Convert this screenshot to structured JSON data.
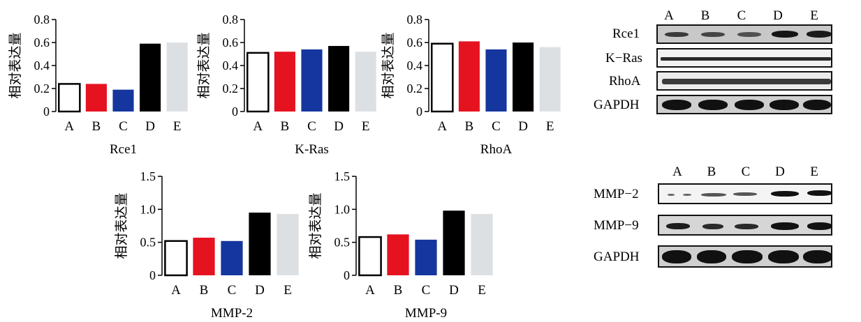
{
  "ylabel": "相对表达量",
  "colors": {
    "A": "#ffffff",
    "B": "#e5121f",
    "C": "#14369e",
    "D": "#000000",
    "E": "#dde0e3"
  },
  "chart_data": [
    {
      "type": "bar",
      "title": "Rce1",
      "categories": [
        "A",
        "B",
        "C",
        "D",
        "E"
      ],
      "values": [
        0.24,
        0.24,
        0.19,
        0.59,
        0.6
      ],
      "ylim": [
        0,
        0.8
      ],
      "yticks": [
        "0",
        "0.2",
        "0.4",
        "0.6",
        "0.8"
      ],
      "ylabel": "相对表达量",
      "xlabel": "Rce1"
    },
    {
      "type": "bar",
      "title": "K-Ras",
      "categories": [
        "A",
        "B",
        "C",
        "D",
        "E"
      ],
      "values": [
        0.51,
        0.52,
        0.54,
        0.57,
        0.52
      ],
      "ylim": [
        0,
        0.8
      ],
      "yticks": [
        "0",
        "0.2",
        "0.4",
        "0.6",
        "0.8"
      ],
      "ylabel": "相对表达量",
      "xlabel": "K-Ras"
    },
    {
      "type": "bar",
      "title": "RhoA",
      "categories": [
        "A",
        "B",
        "C",
        "D",
        "E"
      ],
      "values": [
        0.59,
        0.61,
        0.54,
        0.6,
        0.56
      ],
      "ylim": [
        0,
        0.8
      ],
      "yticks": [
        "0",
        "0.2",
        "0.4",
        "0.6",
        "0.8"
      ],
      "ylabel": "相对表达量",
      "xlabel": "RhoA"
    },
    {
      "type": "bar",
      "title": "MMP-2",
      "categories": [
        "A",
        "B",
        "C",
        "D",
        "E"
      ],
      "values": [
        0.52,
        0.57,
        0.52,
        0.95,
        0.93
      ],
      "ylim": [
        0,
        1.5
      ],
      "yticks": [
        "0",
        "0.5",
        "1.0",
        "1.5"
      ],
      "ylabel": "相对表达量",
      "xlabel": "MMP-2"
    },
    {
      "type": "bar",
      "title": "MMP-9",
      "categories": [
        "A",
        "B",
        "C",
        "D",
        "E"
      ],
      "values": [
        0.58,
        0.62,
        0.54,
        0.98,
        0.93
      ],
      "ylim": [
        0,
        1.5
      ],
      "yticks": [
        "0",
        "0.5",
        "1.0",
        "1.5"
      ],
      "ylabel": "相对表达量",
      "xlabel": "MMP-9"
    }
  ],
  "blot_top": {
    "lanes": [
      "A",
      "B",
      "C",
      "D",
      "E"
    ],
    "rows": [
      {
        "label": "Rce1"
      },
      {
        "label": "K−Ras"
      },
      {
        "label": "RhoA"
      },
      {
        "label": "GAPDH"
      }
    ]
  },
  "blot_bottom": {
    "lanes": [
      "A",
      "B",
      "C",
      "D",
      "E"
    ],
    "rows": [
      {
        "label": "MMP−2"
      },
      {
        "label": "MMP−9"
      },
      {
        "label": "GAPDH"
      }
    ]
  }
}
